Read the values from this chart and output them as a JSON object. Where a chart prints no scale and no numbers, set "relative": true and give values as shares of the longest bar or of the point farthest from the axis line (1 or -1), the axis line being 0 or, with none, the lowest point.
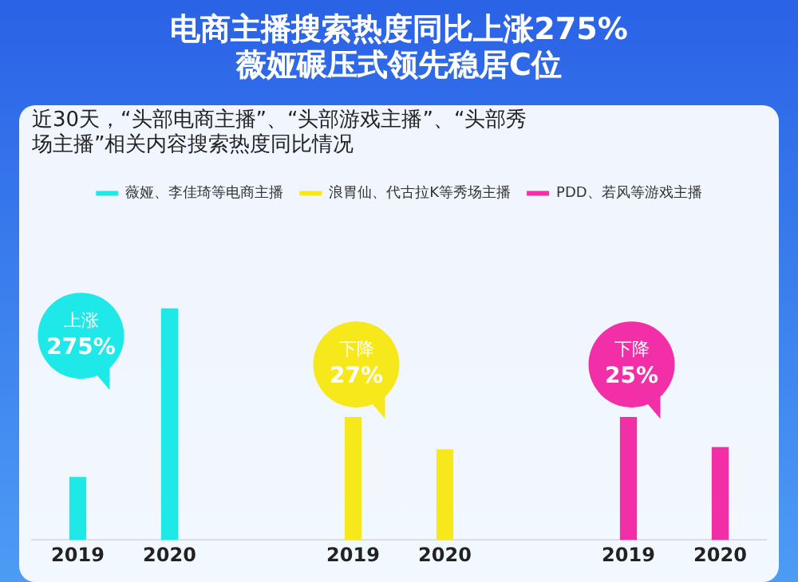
{
  "chart_data": {
    "type": "bar",
    "relative": true,
    "title": "电商主播搜索热度同比上涨275%\n薇娅碾压式领先稳居C位",
    "subtitle": "近30天，“头部电商主播”、“头部游戏主播”、“头部秀场主播”相关内容搜索热度同比情况",
    "categories": [
      "2019",
      "2020",
      null,
      "2019",
      "2020",
      null,
      "2019",
      "2020"
    ],
    "series": [
      {
        "name": "薇娅、李佳琦等电商主播",
        "color": "#1ee8e8",
        "values": [
          0.27,
          1,
          null,
          null,
          null,
          null,
          null,
          null
        ]
      },
      {
        "name": "浪胃仙、代古拉K等秀场主播",
        "color": "#f7e81b",
        "values": [
          null,
          null,
          null,
          0.53,
          0.39,
          null,
          null,
          null
        ]
      },
      {
        "name": "PDD、若风等游戏主播",
        "color": "#f22fa6",
        "values": [
          null,
          null,
          null,
          null,
          null,
          null,
          0.53,
          0.4
        ]
      }
    ],
    "annotations": [
      "上涨275%",
      "下降27%",
      "下降25%"
    ],
    "legend": "top",
    "grid": false
  }
}
